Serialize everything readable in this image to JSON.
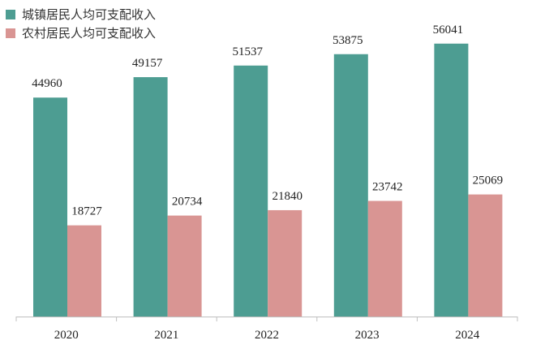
{
  "chart_data": {
    "type": "bar",
    "categories": [
      "2020",
      "2021",
      "2022",
      "2023",
      "2024"
    ],
    "series": [
      {
        "name": "城镇居民人均可支配收入",
        "values": [
          44960,
          49157,
          51537,
          53875,
          56041
        ],
        "color": "#4d9d92"
      },
      {
        "name": "农村居民人均可支配收入",
        "values": [
          18727,
          20734,
          21840,
          23742,
          25069
        ],
        "color": "#d99593"
      }
    ],
    "title": "",
    "xlabel": "",
    "ylabel": "",
    "ylim": [
      0,
      60000
    ],
    "grid": false,
    "legend": "top-left",
    "data_labels": true
  }
}
